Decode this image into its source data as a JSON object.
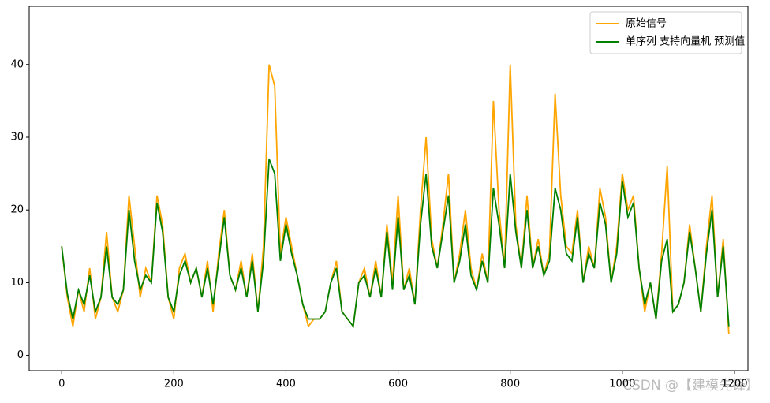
{
  "chart_data": {
    "type": "line",
    "x": [
      0,
      10,
      20,
      30,
      40,
      50,
      60,
      70,
      80,
      90,
      100,
      110,
      120,
      130,
      140,
      150,
      160,
      170,
      180,
      190,
      200,
      210,
      220,
      230,
      240,
      250,
      260,
      270,
      280,
      290,
      300,
      310,
      320,
      330,
      340,
      350,
      360,
      370,
      380,
      390,
      400,
      410,
      420,
      430,
      440,
      450,
      460,
      470,
      480,
      490,
      500,
      510,
      520,
      530,
      540,
      550,
      560,
      570,
      580,
      590,
      600,
      610,
      620,
      630,
      640,
      650,
      660,
      670,
      680,
      690,
      700,
      710,
      720,
      730,
      740,
      750,
      760,
      770,
      780,
      790,
      800,
      810,
      820,
      830,
      840,
      850,
      860,
      870,
      880,
      890,
      900,
      910,
      920,
      930,
      940,
      950,
      960,
      970,
      980,
      990,
      1000,
      1010,
      1020,
      1030,
      1040,
      1050,
      1060,
      1070,
      1080,
      1090,
      1100,
      1110,
      1120,
      1130,
      1140,
      1150,
      1160,
      1170,
      1180,
      1190
    ],
    "series": [
      {
        "name": "原始信号",
        "color": "#ffa500",
        "values": [
          15,
          8,
          4,
          9,
          6,
          12,
          5,
          8,
          17,
          8,
          6,
          9,
          22,
          15,
          8,
          12,
          10,
          22,
          18,
          8,
          5,
          12,
          14,
          10,
          12,
          8,
          13,
          6,
          14,
          20,
          11,
          9,
          13,
          8,
          14,
          6,
          15,
          40,
          37,
          14,
          19,
          15,
          11,
          7,
          4,
          5,
          5,
          6,
          10,
          13,
          6,
          5,
          4,
          10,
          12,
          8,
          13,
          8,
          18,
          10,
          22,
          9,
          12,
          7,
          20,
          30,
          16,
          12,
          18,
          25,
          10,
          14,
          20,
          12,
          9,
          14,
          10,
          35,
          20,
          12,
          40,
          18,
          12,
          22,
          12,
          16,
          11,
          14,
          36,
          22,
          15,
          14,
          20,
          10,
          15,
          12,
          23,
          19,
          10,
          15,
          25,
          20,
          22,
          12,
          6,
          10,
          5,
          14,
          26,
          6,
          7,
          10,
          18,
          12,
          6,
          15,
          22,
          8,
          16,
          3
        ]
      },
      {
        "name": "单序列 支持向量机 预测值",
        "color": "#008000",
        "values": [
          15,
          8.5,
          5,
          9,
          7,
          11,
          6,
          8,
          15,
          8,
          7,
          9,
          20,
          13,
          9,
          11,
          10,
          21,
          17,
          8,
          6,
          11,
          13,
          10,
          12,
          8,
          12,
          7,
          13,
          19,
          11,
          9,
          12,
          8,
          13,
          6,
          13,
          27,
          25,
          13,
          18,
          14,
          11,
          7,
          5,
          5,
          5,
          6,
          10,
          12,
          6,
          5,
          4,
          10,
          11,
          8,
          12,
          8,
          17,
          9,
          19,
          9,
          11,
          7,
          18,
          25,
          15,
          12,
          17,
          22,
          10,
          13,
          18,
          11,
          9,
          13,
          10,
          23,
          18,
          12,
          25,
          17,
          12,
          20,
          12,
          15,
          11,
          13,
          23,
          20,
          14,
          13,
          19,
          10,
          14,
          12,
          21,
          18,
          10,
          14,
          24,
          19,
          21,
          12,
          7,
          10,
          5,
          13,
          16,
          6,
          7,
          10,
          17,
          12,
          6,
          14,
          20,
          8,
          15,
          4
        ]
      }
    ],
    "xlim": [
      -58,
      1224
    ],
    "ylim": [
      -2.1,
      48
    ],
    "xticks": [
      0,
      200,
      400,
      600,
      800,
      1000,
      1200
    ],
    "yticks": [
      0,
      10,
      20,
      30,
      40
    ],
    "legend": "upper right",
    "watermark": "CSDN @【建模先锋】"
  }
}
